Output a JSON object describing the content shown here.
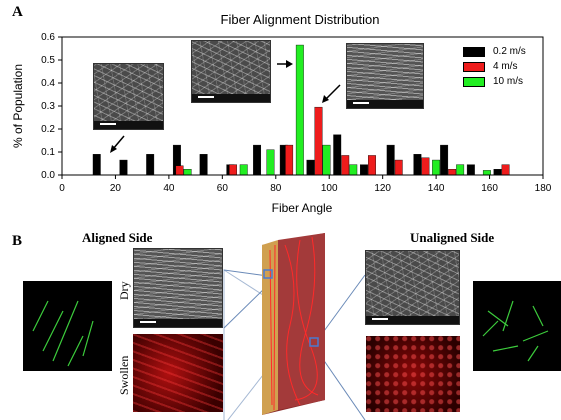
{
  "panel_a_label": "A",
  "panel_b_label": "B",
  "chart_data": {
    "type": "bar",
    "title": "Fiber Alignment Distribution",
    "xlabel": "Fiber Angle",
    "ylabel": "% of Population",
    "xlim": [
      0,
      180
    ],
    "ylim": [
      0,
      0.6
    ],
    "xticks": [
      0,
      20,
      40,
      60,
      80,
      100,
      120,
      140,
      160,
      180
    ],
    "yticks": [
      0.0,
      0.1,
      0.2,
      0.3,
      0.4,
      0.5,
      0.6
    ],
    "ytick_labels": [
      "0.0",
      "0.1",
      "0.2",
      "0.3",
      "0.4",
      "0.5",
      "0.6"
    ],
    "legend_position": "top-right",
    "series": [
      {
        "name": "0.2 m/s",
        "color": "#000000",
        "x": [
          13,
          23,
          33,
          43,
          53,
          63,
          73,
          83,
          93,
          103,
          113,
          123,
          133,
          143,
          153,
          163
        ],
        "values": [
          0.09,
          0.065,
          0.09,
          0.13,
          0.09,
          0.045,
          0.13,
          0.13,
          0.065,
          0.175,
          0.045,
          0.13,
          0.09,
          0.13,
          0.045,
          0.025
        ]
      },
      {
        "name": "4 m/s",
        "color": "#ee1c1c",
        "x": [
          44,
          64,
          85,
          96,
          106,
          116,
          126,
          136,
          146,
          166
        ],
        "values": [
          0.04,
          0.045,
          0.13,
          0.295,
          0.085,
          0.085,
          0.065,
          0.075,
          0.025,
          0.045
        ]
      },
      {
        "name": "10 m/s",
        "color": "#22ee22",
        "x": [
          47,
          68,
          78,
          89,
          99,
          109,
          140,
          149,
          159
        ],
        "values": [
          0.025,
          0.045,
          0.11,
          0.565,
          0.13,
          0.045,
          0.065,
          0.045,
          0.02
        ]
      }
    ]
  },
  "panel_b": {
    "aligned_title": "Aligned Side",
    "unaligned_title": "Unaligned Side",
    "dry_label": "Dry",
    "swollen_label": "Swollen"
  }
}
